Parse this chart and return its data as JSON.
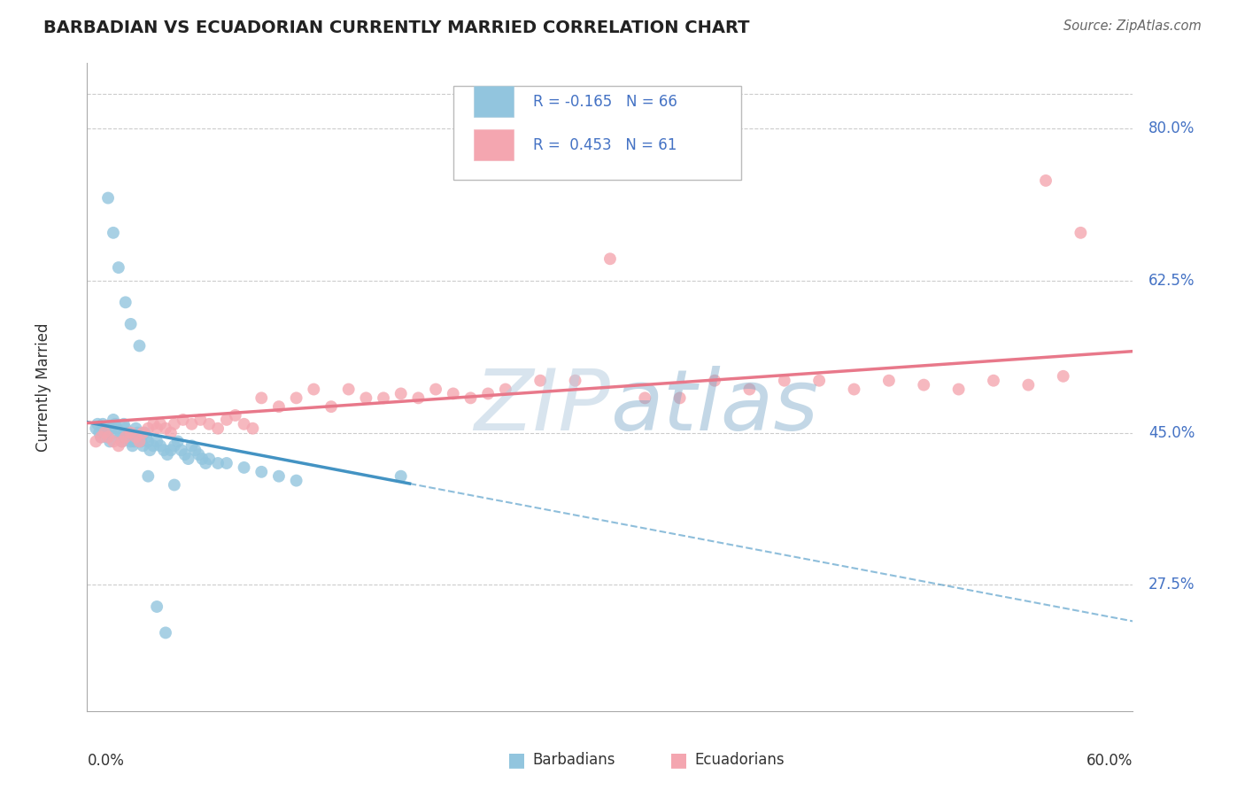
{
  "title": "BARBADIAN VS ECUADORIAN CURRENTLY MARRIED CORRELATION CHART",
  "source": "Source: ZipAtlas.com",
  "y_tick_labels": [
    "80.0%",
    "62.5%",
    "45.0%",
    "27.5%"
  ],
  "y_tick_values": [
    0.8,
    0.625,
    0.45,
    0.275
  ],
  "x_range": [
    0.0,
    0.6
  ],
  "y_range": [
    0.13,
    0.875
  ],
  "legend_blue_r": "-0.165",
  "legend_blue_n": "66",
  "legend_pink_r": "0.453",
  "legend_pink_n": "61",
  "blue_color": "#92c5de",
  "blue_line_color": "#4393c3",
  "pink_color": "#f4a6b0",
  "pink_line_color": "#e8788a",
  "blue_x": [
    0.005,
    0.006,
    0.007,
    0.008,
    0.009,
    0.01,
    0.011,
    0.012,
    0.013,
    0.014,
    0.015,
    0.016,
    0.017,
    0.018,
    0.019,
    0.02,
    0.021,
    0.022,
    0.023,
    0.024,
    0.025,
    0.026,
    0.027,
    0.028,
    0.029,
    0.03,
    0.031,
    0.032,
    0.033,
    0.034,
    0.035,
    0.036,
    0.038,
    0.04,
    0.042,
    0.044,
    0.046,
    0.048,
    0.05,
    0.052,
    0.054,
    0.056,
    0.058,
    0.06,
    0.062,
    0.064,
    0.066,
    0.068,
    0.07,
    0.075,
    0.08,
    0.09,
    0.1,
    0.11,
    0.12,
    0.012,
    0.015,
    0.018,
    0.022,
    0.025,
    0.03,
    0.035,
    0.04,
    0.045,
    0.05,
    0.18
  ],
  "blue_y": [
    0.455,
    0.46,
    0.45,
    0.445,
    0.46,
    0.455,
    0.45,
    0.445,
    0.44,
    0.455,
    0.465,
    0.46,
    0.455,
    0.45,
    0.445,
    0.44,
    0.46,
    0.455,
    0.45,
    0.445,
    0.44,
    0.435,
    0.44,
    0.455,
    0.45,
    0.445,
    0.44,
    0.435,
    0.45,
    0.445,
    0.44,
    0.43,
    0.435,
    0.44,
    0.435,
    0.43,
    0.425,
    0.43,
    0.435,
    0.44,
    0.43,
    0.425,
    0.42,
    0.435,
    0.43,
    0.425,
    0.42,
    0.415,
    0.42,
    0.415,
    0.415,
    0.41,
    0.405,
    0.4,
    0.395,
    0.72,
    0.68,
    0.64,
    0.6,
    0.575,
    0.55,
    0.4,
    0.25,
    0.22,
    0.39,
    0.4
  ],
  "pink_x": [
    0.005,
    0.008,
    0.01,
    0.012,
    0.015,
    0.018,
    0.02,
    0.022,
    0.025,
    0.028,
    0.03,
    0.032,
    0.035,
    0.038,
    0.04,
    0.042,
    0.045,
    0.048,
    0.05,
    0.055,
    0.06,
    0.065,
    0.07,
    0.075,
    0.08,
    0.085,
    0.09,
    0.095,
    0.1,
    0.11,
    0.12,
    0.13,
    0.14,
    0.15,
    0.16,
    0.17,
    0.18,
    0.19,
    0.2,
    0.21,
    0.22,
    0.23,
    0.24,
    0.26,
    0.28,
    0.3,
    0.32,
    0.34,
    0.36,
    0.38,
    0.4,
    0.42,
    0.44,
    0.46,
    0.48,
    0.5,
    0.52,
    0.54,
    0.56,
    0.55,
    0.57
  ],
  "pink_y": [
    0.44,
    0.445,
    0.45,
    0.445,
    0.44,
    0.435,
    0.44,
    0.445,
    0.45,
    0.445,
    0.44,
    0.45,
    0.455,
    0.46,
    0.455,
    0.46,
    0.455,
    0.45,
    0.46,
    0.465,
    0.46,
    0.465,
    0.46,
    0.455,
    0.465,
    0.47,
    0.46,
    0.455,
    0.49,
    0.48,
    0.49,
    0.5,
    0.48,
    0.5,
    0.49,
    0.49,
    0.495,
    0.49,
    0.5,
    0.495,
    0.49,
    0.495,
    0.5,
    0.51,
    0.51,
    0.65,
    0.49,
    0.49,
    0.51,
    0.5,
    0.51,
    0.51,
    0.5,
    0.51,
    0.505,
    0.5,
    0.51,
    0.505,
    0.515,
    0.74,
    0.68
  ]
}
